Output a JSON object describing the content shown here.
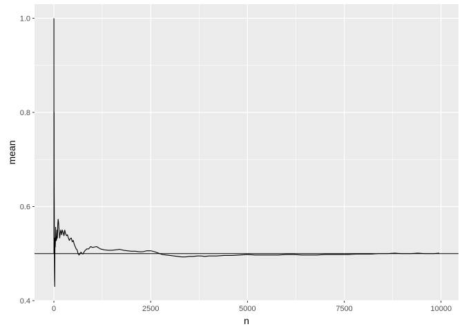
{
  "chart_data": {
    "type": "line",
    "title": "",
    "xlabel": "n",
    "ylabel": "mean",
    "xlim": [
      -500,
      10450
    ],
    "ylim": [
      0.4,
      1.03
    ],
    "x_ticks": [
      0,
      2500,
      5000,
      7500,
      10000
    ],
    "x_tick_labels": [
      "0",
      "2500",
      "5000",
      "7500",
      "10000"
    ],
    "y_ticks": [
      0.4,
      0.6,
      0.8,
      1.0
    ],
    "y_tick_labels": [
      "0.4",
      "0.6",
      "0.8",
      "1.0"
    ],
    "grid": true,
    "legend": "none",
    "background_color": "#ebebeb",
    "grid_color": "#ffffff",
    "line_color": "#000000",
    "hline": {
      "y": 0.5,
      "color": "#000000"
    },
    "series": [
      {
        "x": [
          1,
          2,
          3,
          4,
          5,
          6,
          8,
          10,
          12,
          15,
          18,
          22,
          26,
          30,
          35,
          40,
          45,
          50,
          55,
          60,
          70,
          80,
          90,
          100,
          110,
          120,
          130,
          140,
          150,
          165,
          180,
          200,
          220,
          240,
          260,
          280,
          300,
          325,
          350,
          375,
          400,
          425,
          450,
          475,
          500,
          525,
          550,
          575,
          600,
          625,
          650,
          675,
          700,
          725,
          750,
          775,
          800,
          850,
          900,
          950,
          1000,
          1100,
          1200,
          1300,
          1400,
          1500,
          1600,
          1700,
          1800,
          1900,
          2000,
          2100,
          2200,
          2300,
          2400,
          2500,
          2600,
          2700,
          2800,
          2900,
          3000,
          3100,
          3200,
          3300,
          3400,
          3500,
          3600,
          3700,
          3800,
          3900,
          4000,
          4200,
          4400,
          4600,
          4800,
          5000,
          5200,
          5400,
          5600,
          5800,
          6000,
          6200,
          6400,
          6600,
          6800,
          7000,
          7200,
          7400,
          7600,
          7800,
          8000,
          8200,
          8400,
          8600,
          8800,
          9000,
          9200,
          9400,
          9600,
          9800,
          9950
        ],
        "y": [
          1.0,
          0.5,
          0.667,
          0.75,
          0.8,
          0.667,
          0.625,
          0.6,
          0.5,
          0.467,
          0.444,
          0.43,
          0.5,
          0.533,
          0.514,
          0.525,
          0.556,
          0.54,
          0.527,
          0.533,
          0.529,
          0.55,
          0.533,
          0.56,
          0.573,
          0.567,
          0.554,
          0.543,
          0.533,
          0.545,
          0.55,
          0.54,
          0.55,
          0.545,
          0.538,
          0.55,
          0.543,
          0.538,
          0.54,
          0.533,
          0.528,
          0.532,
          0.533,
          0.525,
          0.528,
          0.52,
          0.515,
          0.51,
          0.508,
          0.5,
          0.497,
          0.5,
          0.503,
          0.5,
          0.499,
          0.503,
          0.506,
          0.51,
          0.51,
          0.515,
          0.513,
          0.515,
          0.51,
          0.508,
          0.507,
          0.507,
          0.508,
          0.509,
          0.507,
          0.506,
          0.505,
          0.505,
          0.504,
          0.504,
          0.506,
          0.506,
          0.504,
          0.501,
          0.498,
          0.497,
          0.496,
          0.495,
          0.494,
          0.493,
          0.493,
          0.494,
          0.494,
          0.495,
          0.495,
          0.494,
          0.495,
          0.495,
          0.496,
          0.496,
          0.497,
          0.498,
          0.497,
          0.497,
          0.497,
          0.497,
          0.498,
          0.498,
          0.497,
          0.497,
          0.497,
          0.498,
          0.498,
          0.498,
          0.498,
          0.499,
          0.499,
          0.499,
          0.5,
          0.5,
          0.501,
          0.5,
          0.5,
          0.501,
          0.5,
          0.5,
          0.501
        ]
      }
    ]
  }
}
